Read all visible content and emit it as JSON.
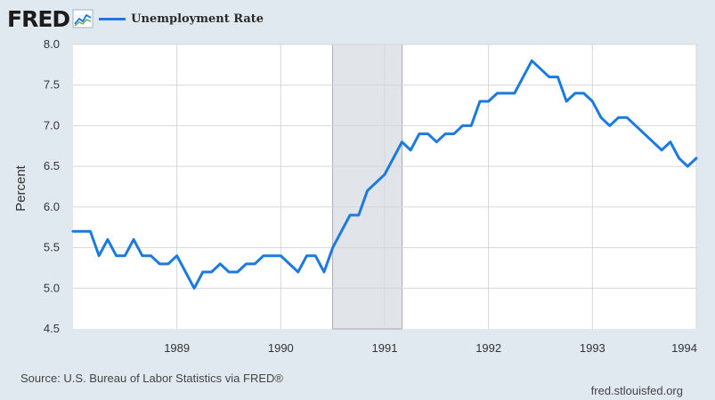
{
  "brand": {
    "name": "FRED",
    "icon": "trend-graph-icon"
  },
  "legend": {
    "label": "Unemployment Rate",
    "color": "#1a7ae0"
  },
  "footer": {
    "source": "Source: U.S. Bureau of Labor Statistics via FRED®",
    "site": "fred.stlouisfed.org"
  },
  "colors": {
    "background": "#e1e9f0",
    "plot_background": "#ffffff",
    "grid": "#d6d6d6",
    "recession_shade": "#e1e5e9",
    "line": "#1a7ae0"
  },
  "chart_data": {
    "type": "line",
    "title": "",
    "xlabel": "",
    "ylabel": "Percent",
    "xlim": [
      "1988-01",
      "1994-01"
    ],
    "ylim": [
      4.5,
      8.0
    ],
    "y_ticks": [
      "4.5",
      "5.0",
      "5.5",
      "6.0",
      "6.5",
      "7.0",
      "7.5",
      "8.0"
    ],
    "x_ticks": [
      "1989",
      "1990",
      "1991",
      "1992",
      "1993",
      "1994"
    ],
    "grid": true,
    "legend_position": "top-left",
    "recessions": [
      {
        "start": "1990-07",
        "end": "1991-03"
      }
    ],
    "series": [
      {
        "name": "Unemployment Rate",
        "x": [
          "1988-01",
          "1988-02",
          "1988-03",
          "1988-04",
          "1988-05",
          "1988-06",
          "1988-07",
          "1988-08",
          "1988-09",
          "1988-10",
          "1988-11",
          "1988-12",
          "1989-01",
          "1989-02",
          "1989-03",
          "1989-04",
          "1989-05",
          "1989-06",
          "1989-07",
          "1989-08",
          "1989-09",
          "1989-10",
          "1989-11",
          "1989-12",
          "1990-01",
          "1990-02",
          "1990-03",
          "1990-04",
          "1990-05",
          "1990-06",
          "1990-07",
          "1990-08",
          "1990-09",
          "1990-10",
          "1990-11",
          "1990-12",
          "1991-01",
          "1991-02",
          "1991-03",
          "1991-04",
          "1991-05",
          "1991-06",
          "1991-07",
          "1991-08",
          "1991-09",
          "1991-10",
          "1991-11",
          "1991-12",
          "1992-01",
          "1992-02",
          "1992-03",
          "1992-04",
          "1992-05",
          "1992-06",
          "1992-07",
          "1992-08",
          "1992-09",
          "1992-10",
          "1992-11",
          "1992-12",
          "1993-01",
          "1993-02",
          "1993-03",
          "1993-04",
          "1993-05",
          "1993-06",
          "1993-07",
          "1993-08",
          "1993-09",
          "1993-10",
          "1993-11",
          "1993-12",
          "1994-01"
        ],
        "values": [
          5.7,
          5.7,
          5.7,
          5.4,
          5.6,
          5.4,
          5.4,
          5.6,
          5.4,
          5.4,
          5.3,
          5.3,
          5.4,
          5.2,
          5.0,
          5.2,
          5.2,
          5.3,
          5.2,
          5.2,
          5.3,
          5.3,
          5.4,
          5.4,
          5.4,
          5.3,
          5.2,
          5.4,
          5.4,
          5.2,
          5.5,
          5.7,
          5.9,
          5.9,
          6.2,
          6.3,
          6.4,
          6.6,
          6.8,
          6.7,
          6.9,
          6.9,
          6.8,
          6.9,
          6.9,
          7.0,
          7.0,
          7.3,
          7.3,
          7.4,
          7.4,
          7.4,
          7.6,
          7.8,
          7.7,
          7.6,
          7.6,
          7.3,
          7.4,
          7.4,
          7.3,
          7.1,
          7.0,
          7.1,
          7.1,
          7.0,
          6.9,
          6.8,
          6.7,
          6.8,
          6.6,
          6.5,
          6.6
        ]
      }
    ]
  }
}
